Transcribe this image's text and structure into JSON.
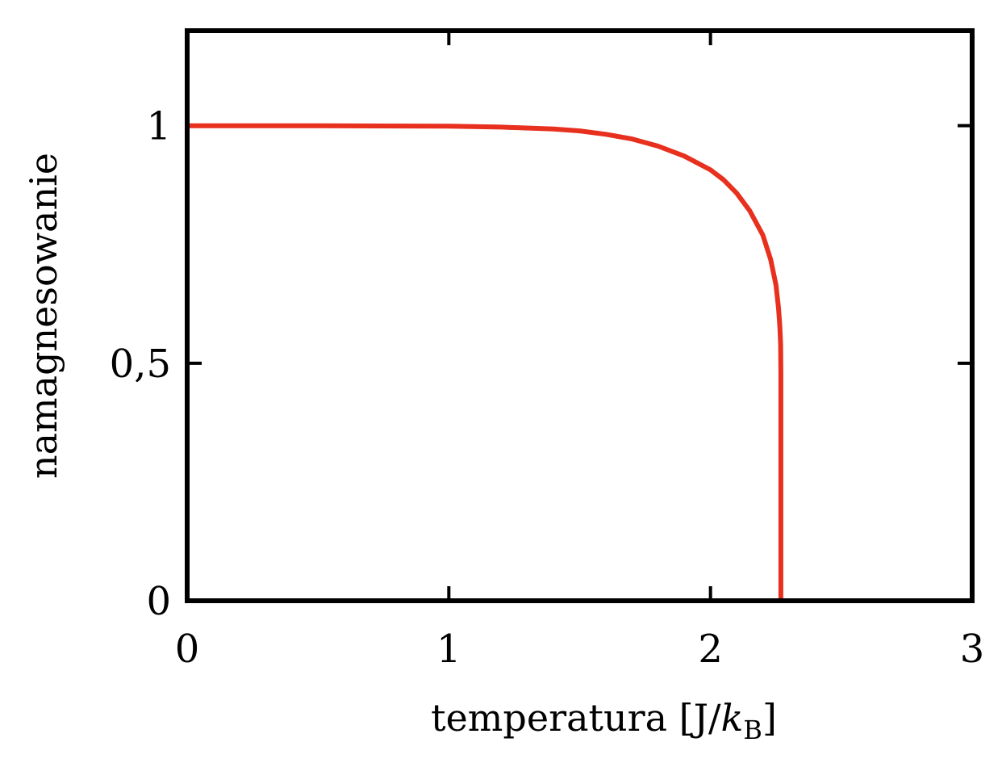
{
  "chart_data": {
    "type": "line",
    "title": "",
    "xlabel": "temperatura [J/",
    "xlabel_italic": "k",
    "xlabel_sub": "B",
    "xlabel_tail": "]",
    "ylabel": "namagnesowanie",
    "xlim": [
      0,
      3
    ],
    "ylim": [
      0,
      1.2
    ],
    "x_ticks": [
      0,
      1,
      2,
      3
    ],
    "x_tick_labels": [
      "0",
      "1",
      "2",
      "3"
    ],
    "y_ticks": [
      0,
      0.5,
      1
    ],
    "y_tick_labels": [
      "0",
      "0,5",
      "1"
    ],
    "grid": false,
    "legend": "none",
    "series": [
      {
        "color": "#e8301f",
        "x": [
          0,
          0.5,
          1.0,
          1.2,
          1.4,
          1.5,
          1.6,
          1.7,
          1.8,
          1.9,
          2.0,
          2.05,
          2.1,
          2.15,
          2.2,
          2.23,
          2.25,
          2.26,
          2.265,
          2.268,
          2.269,
          2.269,
          2.269
        ],
        "y": [
          1.0,
          1.0,
          0.999,
          0.997,
          0.993,
          0.989,
          0.982,
          0.972,
          0.957,
          0.936,
          0.907,
          0.886,
          0.858,
          0.821,
          0.77,
          0.718,
          0.665,
          0.616,
          0.578,
          0.54,
          0.48,
          0.2,
          0.0
        ]
      }
    ]
  }
}
